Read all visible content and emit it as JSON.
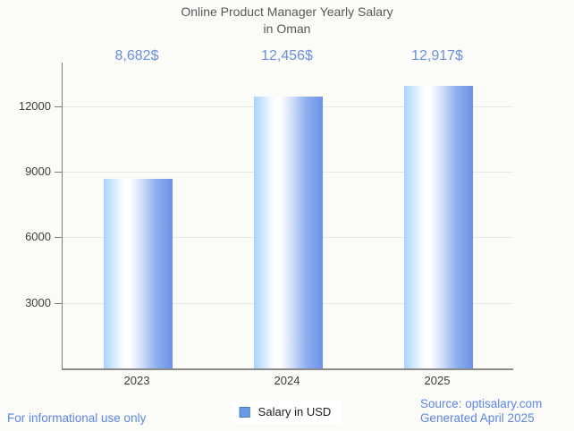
{
  "title": {
    "line1": "Online Product Manager Yearly Salary",
    "line2": "in Oman"
  },
  "chart_data": {
    "type": "bar",
    "title": "Online Product Manager Yearly Salary in Oman",
    "categories": [
      "2023",
      "2024",
      "2025"
    ],
    "values": [
      8682,
      12456,
      12917
    ],
    "value_labels": [
      "8,682$",
      "12,456$",
      "12,917$"
    ],
    "series": [
      {
        "name": "Salary in USD",
        "values": [
          8682,
          12456,
          12917
        ]
      }
    ],
    "xlabel": "",
    "ylabel": "",
    "ylim": [
      0,
      14000
    ],
    "yticks": [
      3000,
      6000,
      9000,
      12000
    ],
    "grid": true,
    "legend_position": "bottom"
  },
  "legend": {
    "label": "Salary in USD"
  },
  "footer": {
    "disclaimer": "For informational use only",
    "source": "Source: optisalary.com",
    "generated": "Generated April 2025"
  },
  "colors": {
    "background": "#fbfbf8",
    "title_text": "#58585a",
    "axis_label": "#3d3d3d",
    "axis_line": "#8c8c8c",
    "gridline": "#e7e7e4",
    "value_label_blue": "#6a90e0",
    "footer_blue": "#5e86e2",
    "bar_gradient": [
      "#a8d4f9",
      "#ffffff",
      "#6b91e8"
    ],
    "legend_swatch_fill": "#699be2",
    "legend_swatch_border": "#4d7abf"
  }
}
